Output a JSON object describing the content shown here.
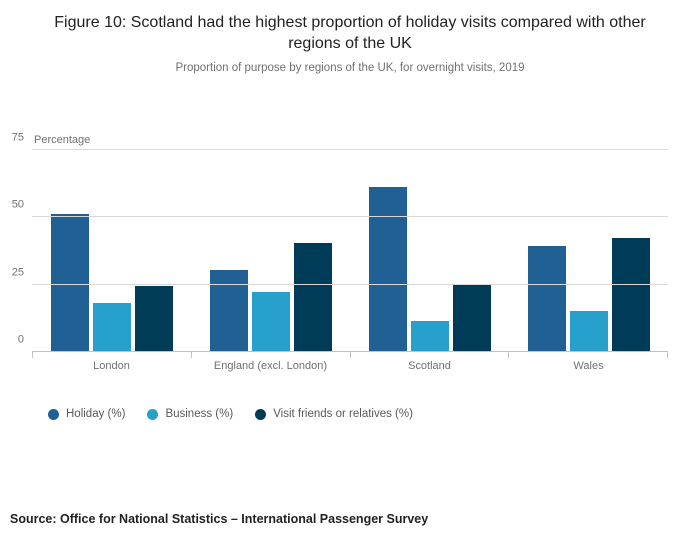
{
  "header": {
    "title": "Figure 10: Scotland had the highest proportion of holiday visits compared with other regions of the UK",
    "subtitle": "Proportion of purpose by regions of the UK, for overnight visits, 2019"
  },
  "chart_data": {
    "type": "bar",
    "title": "Figure 10: Scotland had the highest proportion of holiday visits compared with other regions of the UK",
    "subtitle": "Proportion of purpose by regions of the UK, for overnight visits, 2019",
    "categories": [
      "London",
      "England (excl. London)",
      "Scotland",
      "Wales"
    ],
    "series": [
      {
        "name": "Holiday (%)",
        "color": "#206095",
        "values": [
          51,
          30,
          61,
          39
        ]
      },
      {
        "name": "Business (%)",
        "color": "#27A0CC",
        "values": [
          18,
          22,
          11,
          15
        ]
      },
      {
        "name": "Visit friends or relatives (%)",
        "color": "#003C57",
        "values": [
          24,
          40,
          25,
          42
        ]
      }
    ],
    "xlabel": "",
    "ylabel": "Percentage",
    "yticks": [
      0,
      25,
      50,
      75
    ],
    "ylim": [
      0,
      75
    ],
    "grid": true,
    "legend_position": "bottom-left"
  },
  "footer": {
    "source": "Source: Office for National Statistics – International Passenger Survey"
  }
}
